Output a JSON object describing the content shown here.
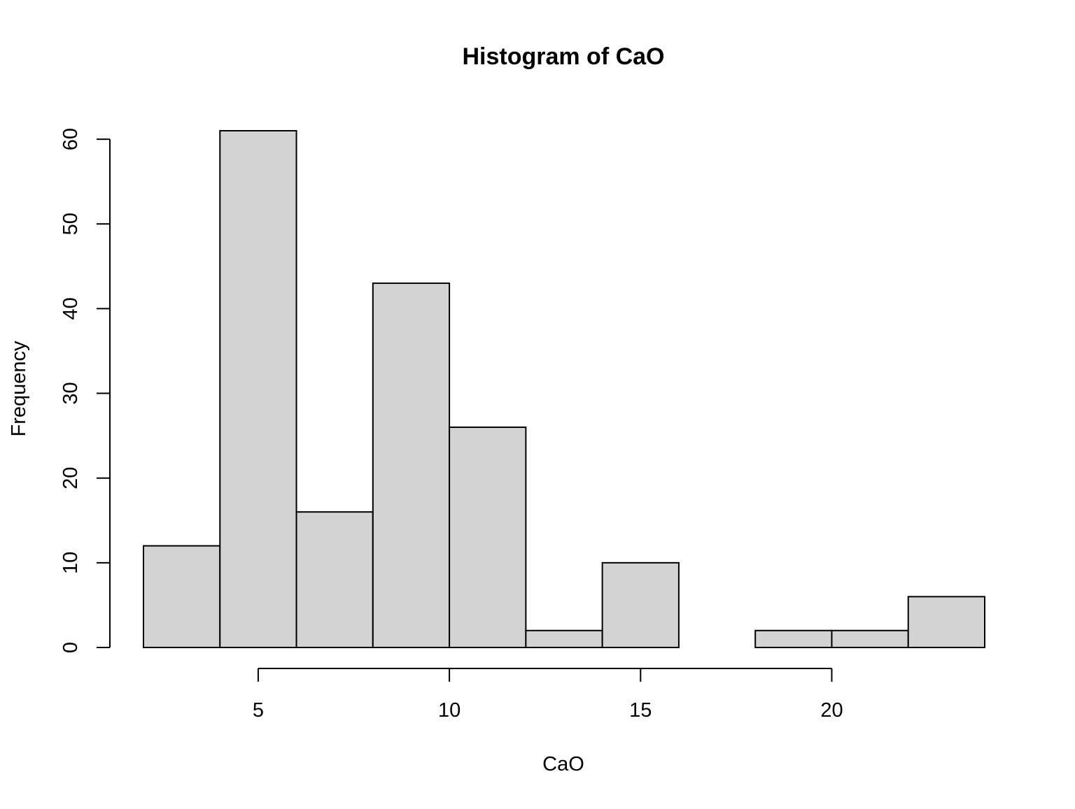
{
  "chart_data": {
    "type": "bar",
    "subtype": "histogram",
    "title": "Histogram of CaO",
    "xlabel": "CaO",
    "ylabel": "Frequency",
    "bins": [
      {
        "from": 2,
        "to": 4,
        "count": 12
      },
      {
        "from": 4,
        "to": 6,
        "count": 61
      },
      {
        "from": 6,
        "to": 8,
        "count": 16
      },
      {
        "from": 8,
        "to": 10,
        "count": 43
      },
      {
        "from": 10,
        "to": 12,
        "count": 26
      },
      {
        "from": 12,
        "to": 14,
        "count": 2
      },
      {
        "from": 14,
        "to": 16,
        "count": 10
      },
      {
        "from": 16,
        "to": 18,
        "count": 0
      },
      {
        "from": 18,
        "to": 20,
        "count": 2
      },
      {
        "from": 20,
        "to": 22,
        "count": 2
      },
      {
        "from": 22,
        "to": 24,
        "count": 6
      }
    ],
    "xticks": [
      5,
      10,
      15,
      20
    ],
    "yticks": [
      0,
      10,
      20,
      30,
      40,
      50,
      60
    ],
    "xlim": [
      2,
      24
    ],
    "ylim": [
      0,
      61
    ],
    "bar_fill": "#d3d3d3",
    "bar_stroke": "#000000",
    "grid": false,
    "legend": "none"
  }
}
